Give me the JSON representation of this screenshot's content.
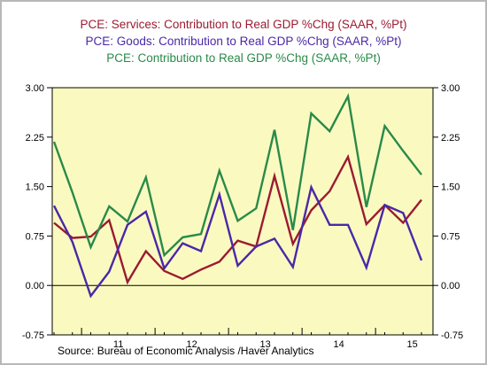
{
  "chart_data": {
    "type": "line",
    "title": "",
    "legend_placement": "top-center",
    "legend": [
      "PCE: Services: Contribution to Real GDP %Chg (SAAR, %Pt)",
      "PCE: Goods: Contribution to Real GDP %Chg (SAAR, %Pt)",
      "PCE: Contribution to Real GDP %Chg (SAAR, %Pt)"
    ],
    "x_labels": [
      "11",
      "12",
      "13",
      "14",
      "15"
    ],
    "x_quarters": [
      "2010Q3",
      "2010Q4",
      "2011Q1",
      "2011Q2",
      "2011Q3",
      "2011Q4",
      "2012Q1",
      "2012Q2",
      "2012Q3",
      "2012Q4",
      "2013Q1",
      "2013Q2",
      "2013Q3",
      "2013Q4",
      "2014Q1",
      "2014Q2",
      "2014Q3",
      "2014Q4",
      "2015Q1",
      "2015Q2",
      "2015Q3"
    ],
    "y_ticks": [
      "3.00",
      "2.25",
      "1.50",
      "0.75",
      "0.00",
      "-0.75"
    ],
    "ylim": [
      -0.75,
      3.0
    ],
    "grid": false,
    "zero_line": true,
    "plot_background": "#fafac0",
    "series": [
      {
        "name": "PCE: Services: Contribution to Real GDP %Chg (SAAR, %Pt)",
        "color": "#9b1b30",
        "values": [
          0.95,
          0.72,
          0.74,
          0.99,
          0.05,
          0.52,
          0.22,
          0.1,
          0.24,
          0.36,
          0.68,
          0.59,
          1.66,
          0.63,
          1.14,
          1.43,
          1.95,
          0.93,
          1.22,
          0.95,
          1.3
        ]
      },
      {
        "name": "PCE: Goods: Contribution to Real GDP %Chg (SAAR, %Pt)",
        "color": "#4a28a8",
        "values": [
          1.21,
          0.66,
          -0.16,
          0.21,
          0.92,
          1.12,
          0.26,
          0.64,
          0.52,
          1.38,
          0.3,
          0.59,
          0.71,
          0.28,
          1.49,
          0.92,
          0.92,
          0.27,
          1.22,
          1.1,
          0.38
        ]
      },
      {
        "name": "PCE: Contribution to Real GDP %Chg (SAAR, %Pt)",
        "color": "#2a8a4a",
        "values": [
          2.18,
          1.41,
          0.58,
          1.2,
          0.97,
          1.64,
          0.46,
          0.73,
          0.78,
          1.74,
          0.98,
          1.17,
          2.36,
          0.84,
          2.61,
          2.34,
          2.87,
          1.19,
          2.42,
          2.04,
          1.68
        ]
      }
    ]
  },
  "source": "Source:  Bureau of Economic Analysis /Haver Analytics"
}
